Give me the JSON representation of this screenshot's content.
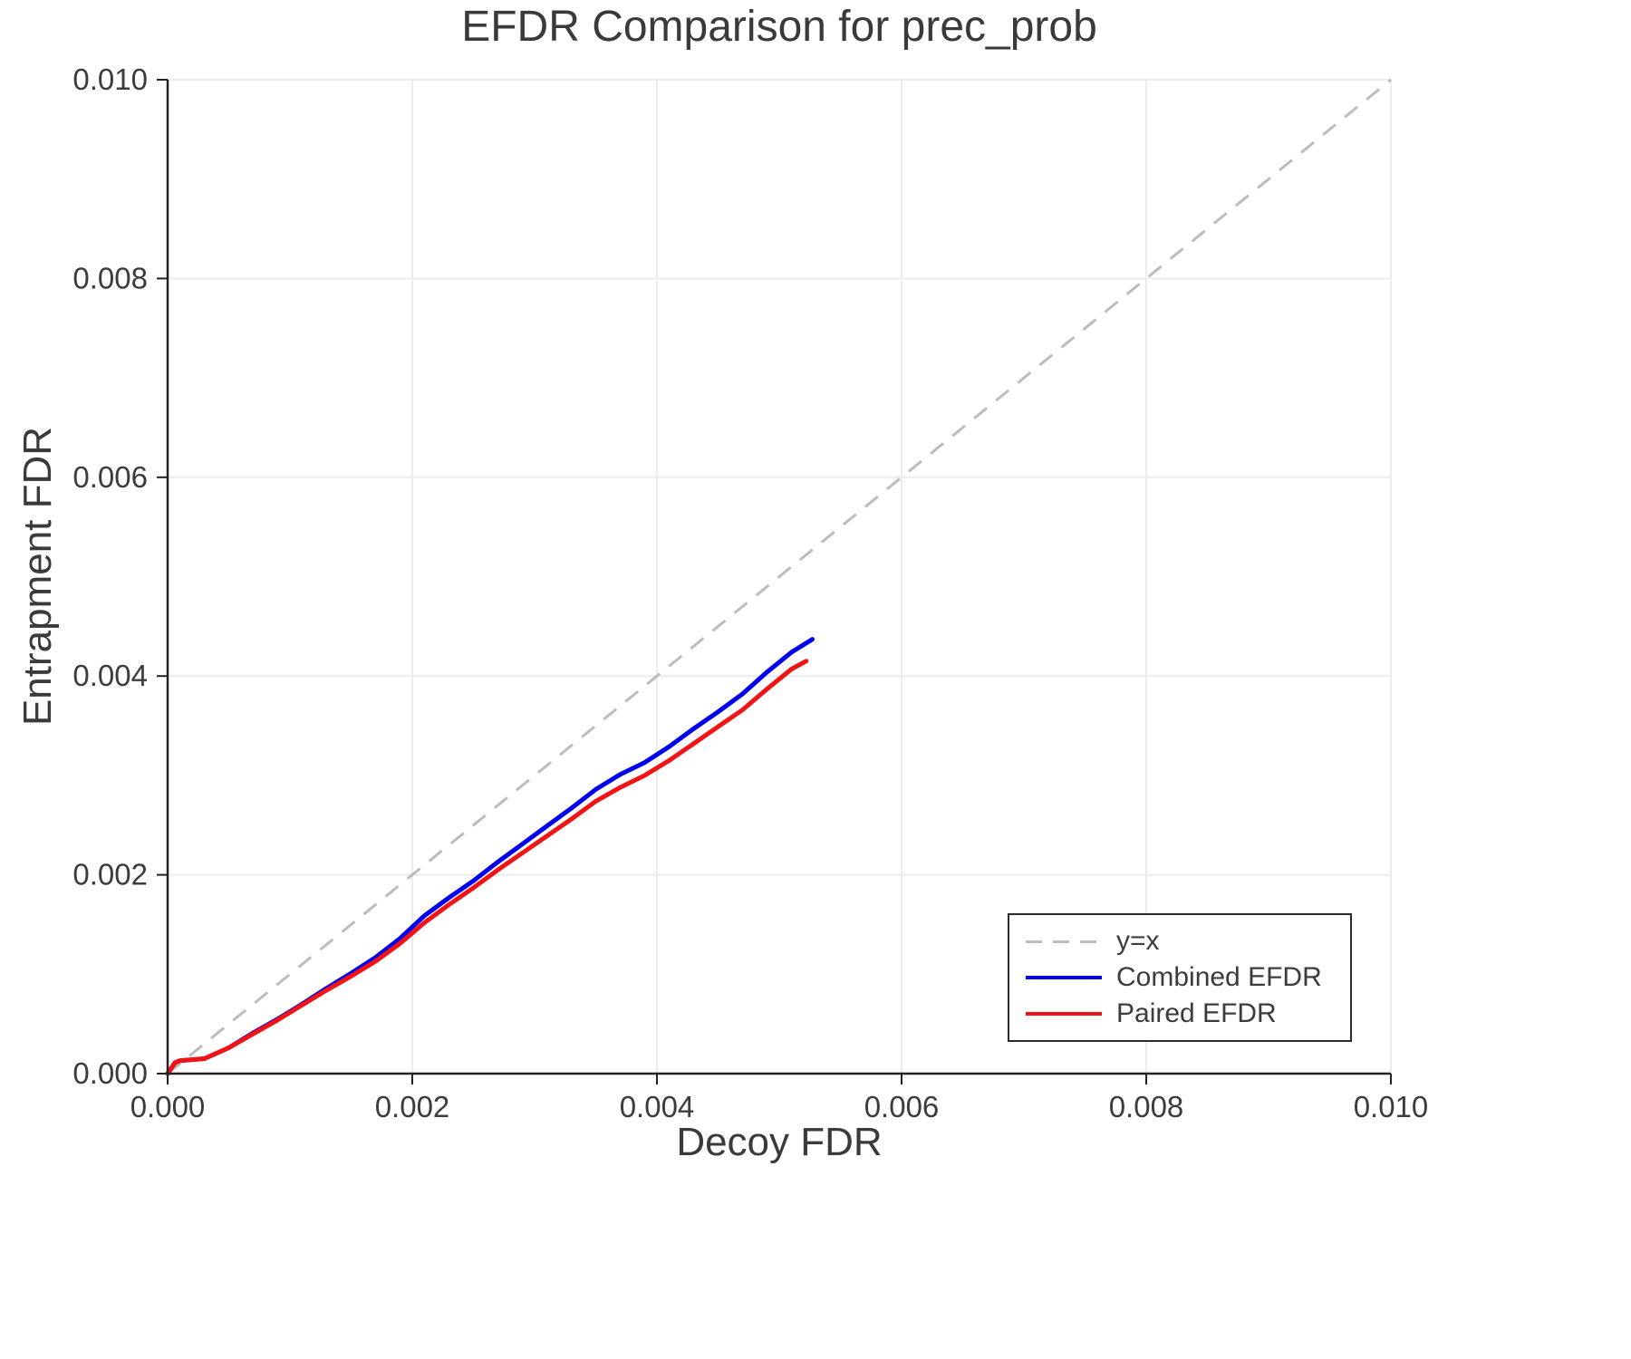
{
  "chart_data": {
    "type": "line",
    "title": "EFDR Comparison for prec_prob",
    "xlabel": "Decoy FDR",
    "ylabel": "Entrapment FDR",
    "xlim": [
      0.0,
      0.01
    ],
    "ylim": [
      0.0,
      0.01
    ],
    "xticks": [
      0.0,
      0.002,
      0.004,
      0.006,
      0.008,
      0.01
    ],
    "xtick_labels": [
      "0.000",
      "0.002",
      "0.004",
      "0.006",
      "0.008",
      "0.010"
    ],
    "yticks": [
      0.0,
      0.002,
      0.004,
      0.006,
      0.008,
      0.01
    ],
    "ytick_labels": [
      "0.000",
      "0.002",
      "0.004",
      "0.006",
      "0.008",
      "0.010"
    ],
    "grid": true,
    "grid_color": "#ececec",
    "spine_color": "#222222",
    "reference_line": {
      "label": "y=x",
      "from": [
        0.0,
        0.0
      ],
      "to": [
        0.01,
        0.01
      ],
      "color": "#bcbcbc",
      "dashed": true
    },
    "series": [
      {
        "name": "Combined EFDR",
        "color": "#0000ee",
        "x": [
          0,
          6e-05,
          0.0001,
          0.0003,
          0.0005,
          0.0007,
          0.0009,
          0.0011,
          0.0013,
          0.0015,
          0.0017,
          0.0019,
          0.0021,
          0.0023,
          0.0025,
          0.0027,
          0.0029,
          0.0031,
          0.0033,
          0.0035,
          0.0037,
          0.0039,
          0.0041,
          0.0043,
          0.0045,
          0.0047,
          0.0049,
          0.0051,
          0.00527
        ],
        "y": [
          0,
          0.00011,
          0.00013,
          0.00015,
          0.00026,
          0.00041,
          0.00055,
          0.0007,
          0.00086,
          0.00101,
          0.00117,
          0.00136,
          0.00159,
          0.00177,
          0.00194,
          0.00213,
          0.00231,
          0.00249,
          0.00267,
          0.00286,
          0.00301,
          0.00313,
          0.00329,
          0.00347,
          0.00364,
          0.00382,
          0.00404,
          0.00424,
          0.00437
        ]
      },
      {
        "name": "Paired EFDR",
        "color": "#f21414",
        "x": [
          0,
          6e-05,
          0.0001,
          0.0003,
          0.0005,
          0.0007,
          0.0009,
          0.0011,
          0.0013,
          0.0015,
          0.0017,
          0.0019,
          0.0021,
          0.0023,
          0.0025,
          0.0027,
          0.0029,
          0.0031,
          0.0033,
          0.0035,
          0.0037,
          0.0039,
          0.0041,
          0.0043,
          0.0045,
          0.0047,
          0.0049,
          0.0051,
          0.00522
        ],
        "y": [
          0,
          0.00011,
          0.00013,
          0.00015,
          0.00026,
          0.0004,
          0.00054,
          0.00069,
          0.00084,
          0.00098,
          0.00113,
          0.00131,
          0.00152,
          0.0017,
          0.00187,
          0.00205,
          0.00222,
          0.00239,
          0.00256,
          0.00274,
          0.00288,
          0.003,
          0.00315,
          0.00332,
          0.00349,
          0.00366,
          0.00387,
          0.00407,
          0.00415
        ]
      }
    ],
    "legend": {
      "position": "lower right",
      "entries": [
        {
          "label": "y=x",
          "color": "#bcbcbc",
          "dashed": true
        },
        {
          "label": "Combined EFDR",
          "color": "#0000ee",
          "dashed": false
        },
        {
          "label": "Paired EFDR",
          "color": "#f21414",
          "dashed": false
        }
      ]
    }
  }
}
